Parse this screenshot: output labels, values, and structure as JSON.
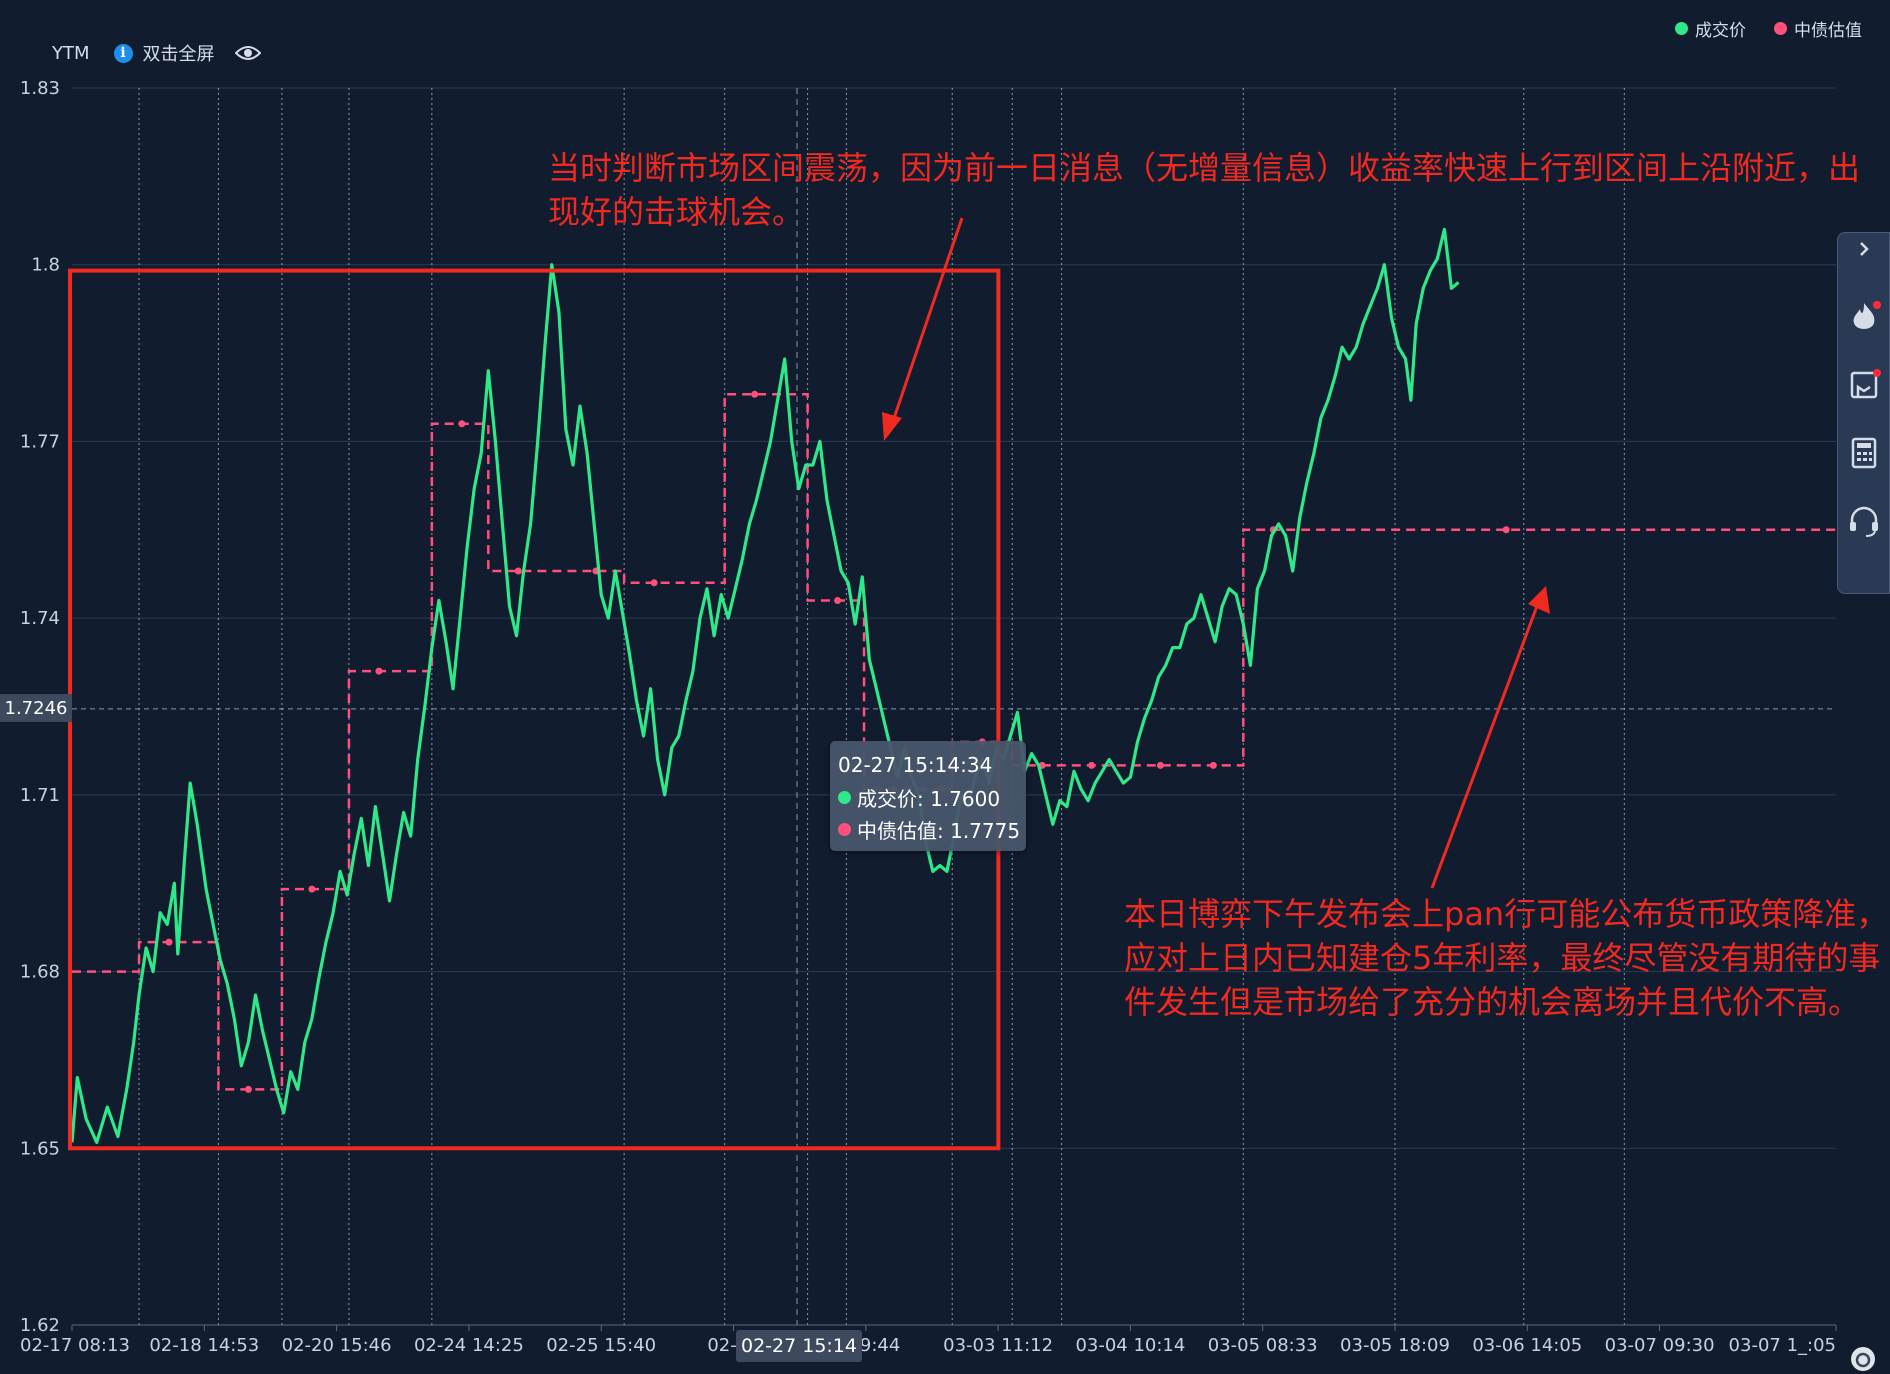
{
  "header": {
    "ytm_label": "YTM",
    "fullscreen_label": "双击全屏",
    "info_icon": "info-icon",
    "eye_icon": "eye-icon"
  },
  "legend": [
    {
      "label": "成交价",
      "color": "#2ee88a"
    },
    {
      "label": "中债估值",
      "color": "#ff4f7b"
    }
  ],
  "tooltip": {
    "time": "02-27 15:14:34",
    "trade_label": "成交价: 1.7600",
    "valuation_label": "中债估值: 1.7775"
  },
  "crosshair": {
    "y_value": "1.7246",
    "x_label": "02-27 15:14"
  },
  "annotations": {
    "note1": "当时判断市场区间震荡，因为前一日消息（无增量信息）收益率快速上行到区间上沿附近，出现好的击球机会。",
    "note2": "本日博弈下午发布会上pan行可能公布货币政策降准，应对上日内已知建仓5年利率，最终尽管没有期待的事件发生但是市场给了充分的机会离场并且代价不高。"
  },
  "sidebar": {
    "icons": [
      "collapse-arrow-icon",
      "fire-icon",
      "bookmark-icon",
      "calculator-icon",
      "headset-icon"
    ]
  },
  "chart_data": {
    "type": "line",
    "title": "",
    "xlabel": "",
    "ylabel": "YTM",
    "ylim": [
      1.62,
      1.83
    ],
    "yticks": [
      "1.62",
      "1.65",
      "1.68",
      "1.71",
      "1.74",
      "1.77",
      "1.8",
      "1.83"
    ],
    "x_tick_labels": [
      "02-17 08:13",
      "02-18 14:53",
      "02-20 15:46",
      "02-24 14:25",
      "02-25 15:40",
      "02-27",
      "3 09:44",
      "03-03 11:12",
      "03-04 10:14",
      "03-05 08:33",
      "03-05 18:09",
      "03-06 14:05",
      "03-07 09:30",
      "03-07 1_:05"
    ],
    "x_range": [
      0,
      100
    ],
    "x_tick_positions": [
      0,
      7.5,
      15,
      22.5,
      30,
      37.5,
      45,
      52.5,
      60,
      67.5,
      75,
      82.5,
      90,
      100
    ],
    "day_dividers": [
      3.8,
      8.3,
      11.9,
      15.7,
      20.4,
      31.3,
      37.0,
      41.7,
      43.9,
      49.9,
      53.3,
      56.1,
      66.4,
      75.0,
      82.3,
      88.0
    ],
    "grid": true,
    "legend_position": "top-right",
    "series": [
      {
        "name": "成交价",
        "color": "#2ee88a",
        "points": [
          [
            0,
            1.651
          ],
          [
            0.3,
            1.662
          ],
          [
            0.8,
            1.655
          ],
          [
            1.4,
            1.651
          ],
          [
            2.0,
            1.657
          ],
          [
            2.6,
            1.652
          ],
          [
            3.1,
            1.66
          ],
          [
            3.5,
            1.668
          ],
          [
            3.8,
            1.676
          ],
          [
            4.2,
            1.684
          ],
          [
            4.6,
            1.68
          ],
          [
            5.0,
            1.69
          ],
          [
            5.4,
            1.688
          ],
          [
            5.8,
            1.695
          ],
          [
            6.0,
            1.683
          ],
          [
            6.4,
            1.7
          ],
          [
            6.7,
            1.712
          ],
          [
            7.1,
            1.705
          ],
          [
            7.6,
            1.694
          ],
          [
            8.0,
            1.688
          ],
          [
            8.4,
            1.682
          ],
          [
            8.8,
            1.678
          ],
          [
            9.2,
            1.672
          ],
          [
            9.6,
            1.664
          ],
          [
            10.0,
            1.668
          ],
          [
            10.4,
            1.676
          ],
          [
            10.8,
            1.67
          ],
          [
            11.2,
            1.665
          ],
          [
            11.6,
            1.66
          ],
          [
            12.0,
            1.656
          ],
          [
            12.4,
            1.663
          ],
          [
            12.8,
            1.66
          ],
          [
            13.2,
            1.668
          ],
          [
            13.6,
            1.672
          ],
          [
            14.0,
            1.679
          ],
          [
            14.4,
            1.685
          ],
          [
            14.8,
            1.69
          ],
          [
            15.2,
            1.697
          ],
          [
            15.6,
            1.693
          ],
          [
            16.0,
            1.7
          ],
          [
            16.4,
            1.706
          ],
          [
            16.8,
            1.698
          ],
          [
            17.2,
            1.708
          ],
          [
            17.6,
            1.7
          ],
          [
            18.0,
            1.692
          ],
          [
            18.4,
            1.7
          ],
          [
            18.8,
            1.707
          ],
          [
            19.2,
            1.703
          ],
          [
            19.6,
            1.716
          ],
          [
            20.0,
            1.725
          ],
          [
            20.4,
            1.735
          ],
          [
            20.8,
            1.743
          ],
          [
            21.2,
            1.736
          ],
          [
            21.6,
            1.728
          ],
          [
            22.0,
            1.74
          ],
          [
            22.4,
            1.752
          ],
          [
            22.8,
            1.762
          ],
          [
            23.2,
            1.768
          ],
          [
            23.6,
            1.782
          ],
          [
            24.0,
            1.77
          ],
          [
            24.4,
            1.756
          ],
          [
            24.8,
            1.742
          ],
          [
            25.2,
            1.737
          ],
          [
            25.6,
            1.748
          ],
          [
            26.0,
            1.756
          ],
          [
            26.4,
            1.77
          ],
          [
            26.8,
            1.786
          ],
          [
            27.2,
            1.8
          ],
          [
            27.6,
            1.792
          ],
          [
            28.0,
            1.772
          ],
          [
            28.4,
            1.766
          ],
          [
            28.8,
            1.776
          ],
          [
            29.2,
            1.768
          ],
          [
            29.6,
            1.756
          ],
          [
            30.0,
            1.744
          ],
          [
            30.4,
            1.74
          ],
          [
            30.8,
            1.748
          ],
          [
            31.2,
            1.741
          ],
          [
            31.6,
            1.734
          ],
          [
            32.0,
            1.726
          ],
          [
            32.4,
            1.72
          ],
          [
            32.8,
            1.728
          ],
          [
            33.2,
            1.716
          ],
          [
            33.6,
            1.71
          ],
          [
            34.0,
            1.718
          ],
          [
            34.4,
            1.72
          ],
          [
            34.8,
            1.726
          ],
          [
            35.2,
            1.731
          ],
          [
            35.6,
            1.74
          ],
          [
            36.0,
            1.745
          ],
          [
            36.4,
            1.737
          ],
          [
            36.8,
            1.744
          ],
          [
            37.2,
            1.74
          ],
          [
            37.6,
            1.745
          ],
          [
            38.0,
            1.75
          ],
          [
            38.4,
            1.756
          ],
          [
            38.8,
            1.76
          ],
          [
            39.2,
            1.765
          ],
          [
            39.6,
            1.77
          ],
          [
            40.0,
            1.777
          ],
          [
            40.4,
            1.784
          ],
          [
            40.8,
            1.77
          ],
          [
            41.2,
            1.762
          ],
          [
            41.6,
            1.766
          ],
          [
            42.0,
            1.766
          ],
          [
            42.4,
            1.77
          ],
          [
            42.8,
            1.76
          ],
          [
            43.2,
            1.754
          ],
          [
            43.6,
            1.748
          ],
          [
            44.0,
            1.746
          ],
          [
            44.4,
            1.739
          ],
          [
            44.8,
            1.747
          ],
          [
            45.2,
            1.733
          ],
          [
            45.6,
            1.728
          ],
          [
            46.0,
            1.723
          ],
          [
            46.4,
            1.718
          ],
          [
            46.8,
            1.713
          ],
          [
            47.2,
            1.718
          ],
          [
            47.6,
            1.713
          ],
          [
            48.0,
            1.71
          ],
          [
            48.4,
            1.702
          ],
          [
            48.8,
            1.697
          ],
          [
            49.2,
            1.698
          ],
          [
            49.6,
            1.697
          ],
          [
            50.0,
            1.703
          ],
          [
            50.4,
            1.71
          ],
          [
            50.8,
            1.708
          ],
          [
            51.2,
            1.713
          ],
          [
            51.6,
            1.716
          ],
          [
            52.0,
            1.712
          ],
          [
            52.4,
            1.718
          ],
          [
            52.8,
            1.716
          ],
          [
            53.2,
            1.72
          ],
          [
            53.6,
            1.724
          ],
          [
            54.0,
            1.714
          ],
          [
            54.4,
            1.717
          ],
          [
            54.8,
            1.715
          ],
          [
            55.2,
            1.71
          ],
          [
            55.6,
            1.705
          ],
          [
            56.0,
            1.709
          ],
          [
            56.4,
            1.708
          ],
          [
            56.8,
            1.714
          ],
          [
            57.2,
            1.711
          ],
          [
            57.6,
            1.709
          ],
          [
            58.0,
            1.712
          ],
          [
            58.4,
            1.714
          ],
          [
            58.8,
            1.716
          ],
          [
            59.2,
            1.714
          ],
          [
            59.6,
            1.712
          ],
          [
            60.0,
            1.713
          ],
          [
            60.4,
            1.719
          ],
          [
            60.8,
            1.723
          ],
          [
            61.2,
            1.726
          ],
          [
            61.6,
            1.73
          ],
          [
            62.0,
            1.732
          ],
          [
            62.4,
            1.735
          ],
          [
            62.8,
            1.735
          ],
          [
            63.2,
            1.739
          ],
          [
            63.6,
            1.74
          ],
          [
            64.0,
            1.744
          ],
          [
            64.4,
            1.74
          ],
          [
            64.8,
            1.736
          ],
          [
            65.2,
            1.742
          ],
          [
            65.6,
            1.745
          ],
          [
            66.0,
            1.744
          ],
          [
            66.4,
            1.739
          ],
          [
            66.8,
            1.732
          ],
          [
            67.2,
            1.745
          ],
          [
            67.6,
            1.748
          ],
          [
            68.0,
            1.754
          ],
          [
            68.4,
            1.756
          ],
          [
            68.8,
            1.754
          ],
          [
            69.2,
            1.748
          ],
          [
            69.6,
            1.757
          ],
          [
            70.0,
            1.763
          ],
          [
            70.4,
            1.768
          ],
          [
            70.8,
            1.774
          ],
          [
            71.2,
            1.777
          ],
          [
            71.6,
            1.781
          ],
          [
            72.0,
            1.786
          ],
          [
            72.4,
            1.784
          ],
          [
            72.8,
            1.786
          ],
          [
            73.2,
            1.79
          ],
          [
            73.6,
            1.793
          ],
          [
            74.0,
            1.796
          ],
          [
            74.4,
            1.8
          ],
          [
            74.8,
            1.791
          ],
          [
            75.2,
            1.786
          ],
          [
            75.6,
            1.784
          ],
          [
            75.9,
            1.777
          ],
          [
            76.2,
            1.79
          ],
          [
            76.6,
            1.796
          ],
          [
            77.0,
            1.799
          ],
          [
            77.4,
            1.801
          ],
          [
            77.8,
            1.806
          ],
          [
            78.2,
            1.796
          ],
          [
            78.6,
            1.797
          ]
        ]
      },
      {
        "name": "中债估值",
        "color": "#ff4f7b",
        "steps": [
          [
            0,
            1.68
          ],
          [
            3.8,
            1.685
          ],
          [
            8.3,
            1.66
          ],
          [
            11.9,
            1.694
          ],
          [
            15.7,
            1.731
          ],
          [
            20.4,
            1.773
          ],
          [
            23.6,
            1.748
          ],
          [
            28.0,
            1.748
          ],
          [
            31.3,
            1.746
          ],
          [
            37.0,
            1.778
          ],
          [
            41.7,
            1.743
          ],
          [
            44.9,
            1.711
          ],
          [
            47.6,
            1.711
          ],
          [
            49.9,
            1.719
          ],
          [
            53.3,
            1.715
          ],
          [
            56.1,
            1.715
          ],
          [
            60.0,
            1.715
          ],
          [
            63.0,
            1.715
          ],
          [
            66.4,
            1.755
          ],
          [
            79.6,
            1.755
          ],
          [
            100,
            1.755
          ]
        ]
      }
    ]
  }
}
